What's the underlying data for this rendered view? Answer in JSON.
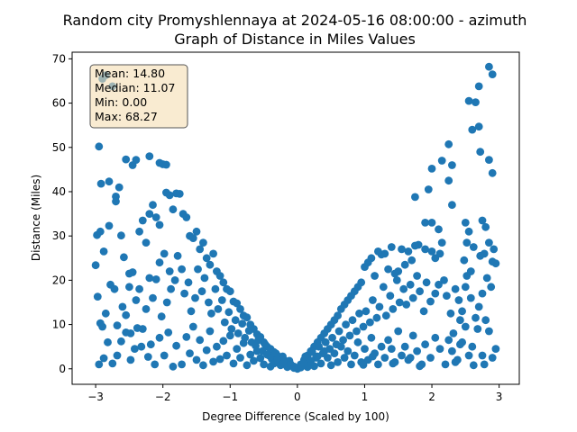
{
  "chart_data": {
    "type": "scatter",
    "title_line1": "Random city Promyshlennaya at 2024-05-16 08:00:00  - azimuth",
    "title_line2": "Graph of Distance in Miles Values",
    "xlabel": "Degree Difference (Scaled by 100)",
    "ylabel": "Distance (Miles)",
    "xlim": [
      -3.35,
      3.3
    ],
    "ylim": [
      -3.5,
      71.5
    ],
    "xticks": [
      -3,
      -2,
      -1,
      0,
      1,
      2,
      3
    ],
    "yticks": [
      0,
      10,
      20,
      30,
      40,
      50,
      60,
      70
    ],
    "grid": false,
    "marker_color": "#1f77b4",
    "stats_box": {
      "mean": "Mean: 14.80",
      "median": "Median: 11.07",
      "min": "Min: 0.00",
      "max": "Max: 68.27",
      "facecolor": "#f5deb3",
      "placement": "top-left"
    },
    "points": [
      [
        -2.95,
        50.2
      ],
      [
        -2.9,
        65.5
      ],
      [
        -2.85,
        66.3
      ],
      [
        -2.92,
        41.8
      ],
      [
        -2.8,
        42.3
      ],
      [
        -2.75,
        63.8
      ],
      [
        -2.7,
        38.9
      ],
      [
        -2.65,
        41.0
      ],
      [
        -2.55,
        47.3
      ],
      [
        -2.45,
        46.0
      ],
      [
        -2.4,
        47.2
      ],
      [
        -2.2,
        48.0
      ],
      [
        -2.05,
        46.5
      ],
      [
        -2.0,
        46.2
      ],
      [
        -1.95,
        46.1
      ],
      [
        -2.98,
        30.2
      ],
      [
        -2.93,
        31.0
      ],
      [
        -2.88,
        26.5
      ],
      [
        -2.8,
        32.3
      ],
      [
        -2.7,
        37.8
      ],
      [
        -2.62,
        30.1
      ],
      [
        -2.58,
        25.2
      ],
      [
        -2.5,
        21.5
      ],
      [
        -2.45,
        21.8
      ],
      [
        -2.35,
        31.0
      ],
      [
        -2.3,
        33.5
      ],
      [
        -2.25,
        28.5
      ],
      [
        -2.2,
        35.0
      ],
      [
        -2.15,
        37.0
      ],
      [
        -2.1,
        34.2
      ],
      [
        -2.05,
        32.5
      ],
      [
        -1.95,
        39.8
      ],
      [
        -1.9,
        39.2
      ],
      [
        -1.85,
        36.0
      ],
      [
        -1.8,
        39.6
      ],
      [
        -1.75,
        39.5
      ],
      [
        -1.7,
        35.0
      ],
      [
        -1.65,
        34.2
      ],
      [
        -1.6,
        30.0
      ],
      [
        -1.55,
        29.5
      ],
      [
        -1.5,
        31.0
      ],
      [
        -1.45,
        27.0
      ],
      [
        -1.4,
        28.5
      ],
      [
        -1.35,
        25.0
      ],
      [
        -1.3,
        23.5
      ],
      [
        -1.25,
        26.0
      ],
      [
        -1.2,
        22.0
      ],
      [
        -1.15,
        21.0
      ],
      [
        -1.1,
        19.5
      ],
      [
        -1.05,
        18.0
      ],
      [
        -1.0,
        17.5
      ],
      [
        -0.95,
        15.2
      ],
      [
        -0.9,
        14.8
      ],
      [
        -0.85,
        13.5
      ],
      [
        -0.8,
        12.0
      ],
      [
        -0.75,
        11.6
      ],
      [
        -0.7,
        10.0
      ],
      [
        -0.65,
        9.0
      ],
      [
        -0.6,
        7.8
      ],
      [
        -0.55,
        7.2
      ],
      [
        -0.5,
        6.0
      ],
      [
        -0.45,
        5.0
      ],
      [
        -0.4,
        4.5
      ],
      [
        -0.35,
        3.8
      ],
      [
        -0.3,
        3.0
      ],
      [
        -0.25,
        2.6
      ],
      [
        -0.2,
        2.0
      ],
      [
        -0.15,
        1.6
      ],
      [
        -0.1,
        1.0
      ],
      [
        -0.05,
        0.5
      ],
      [
        0.0,
        0.0
      ],
      [
        -3.0,
        23.4
      ],
      [
        -2.97,
        16.3
      ],
      [
        -2.93,
        10.3
      ],
      [
        -2.9,
        9.5
      ],
      [
        -2.85,
        12.5
      ],
      [
        -2.78,
        19.0
      ],
      [
        -2.72,
        18.0
      ],
      [
        -2.68,
        9.8
      ],
      [
        -2.6,
        14.0
      ],
      [
        -2.55,
        12.1
      ],
      [
        -2.5,
        18.5
      ],
      [
        -2.48,
        8.0
      ],
      [
        -2.42,
        4.5
      ],
      [
        -2.4,
        15.5
      ],
      [
        -2.35,
        18.0
      ],
      [
        -2.3,
        9.0
      ],
      [
        -2.25,
        13.5
      ],
      [
        -2.2,
        20.5
      ],
      [
        -2.15,
        16.0
      ],
      [
        -2.1,
        20.2
      ],
      [
        -2.05,
        24.0
      ],
      [
        -2.02,
        11.8
      ],
      [
        -1.98,
        26.0
      ],
      [
        -1.94,
        15.0
      ],
      [
        -1.9,
        22.0
      ],
      [
        -1.88,
        18.0
      ],
      [
        -1.82,
        20.0
      ],
      [
        -1.78,
        25.5
      ],
      [
        -1.72,
        22.5
      ],
      [
        -1.68,
        17.0
      ],
      [
        -1.62,
        19.5
      ],
      [
        -1.58,
        13.0
      ],
      [
        -1.52,
        16.0
      ],
      [
        -1.48,
        22.5
      ],
      [
        -1.42,
        17.5
      ],
      [
        -1.38,
        20.5
      ],
      [
        -1.32,
        15.0
      ],
      [
        -1.28,
        12.5
      ],
      [
        -1.22,
        18.0
      ],
      [
        -1.18,
        13.5
      ],
      [
        -1.12,
        15.5
      ],
      [
        -1.08,
        10.5
      ],
      [
        -1.02,
        12.8
      ],
      [
        -0.98,
        9.0
      ],
      [
        -0.92,
        11.0
      ],
      [
        -0.88,
        8.0
      ],
      [
        -0.82,
        10.2
      ],
      [
        -0.78,
        7.0
      ],
      [
        -0.72,
        8.6
      ],
      [
        -0.68,
        6.0
      ],
      [
        -0.62,
        5.2
      ],
      [
        -0.58,
        6.5
      ],
      [
        -0.52,
        4.0
      ],
      [
        -0.48,
        5.5
      ],
      [
        -0.42,
        3.0
      ],
      [
        -0.38,
        2.2
      ],
      [
        -0.32,
        3.5
      ],
      [
        -0.28,
        1.5
      ],
      [
        -0.22,
        2.8
      ],
      [
        -0.18,
        1.0
      ],
      [
        -0.12,
        1.8
      ],
      [
        -2.95,
        1.0
      ],
      [
        -2.88,
        2.4
      ],
      [
        -2.82,
        6.0
      ],
      [
        -2.75,
        1.2
      ],
      [
        -2.68,
        3.0
      ],
      [
        -2.62,
        6.2
      ],
      [
        -2.55,
        8.2
      ],
      [
        -2.48,
        2.0
      ],
      [
        -2.38,
        9.2
      ],
      [
        -2.32,
        5.0
      ],
      [
        -2.22,
        2.7
      ],
      [
        -2.18,
        5.5
      ],
      [
        -2.12,
        1.0
      ],
      [
        -2.05,
        7.0
      ],
      [
        -1.98,
        3.0
      ],
      [
        -1.92,
        8.2
      ],
      [
        -1.85,
        0.5
      ],
      [
        -1.8,
        5.2
      ],
      [
        -1.72,
        1.0
      ],
      [
        -1.65,
        7.2
      ],
      [
        -1.6,
        3.5
      ],
      [
        -1.55,
        9.5
      ],
      [
        -1.5,
        2.0
      ],
      [
        -1.45,
        6.5
      ],
      [
        -1.4,
        0.8
      ],
      [
        -1.35,
        4.2
      ],
      [
        -1.3,
        8.5
      ],
      [
        -1.25,
        1.6
      ],
      [
        -1.2,
        5.0
      ],
      [
        -1.15,
        2.2
      ],
      [
        -1.1,
        6.3
      ],
      [
        -1.05,
        3.0
      ],
      [
        -1.0,
        7.5
      ],
      [
        -0.95,
        1.2
      ],
      [
        -0.9,
        4.5
      ],
      [
        -0.85,
        2.5
      ],
      [
        -0.8,
        5.8
      ],
      [
        -0.75,
        0.8
      ],
      [
        -0.7,
        3.2
      ],
      [
        -0.65,
        1.8
      ],
      [
        -0.6,
        4.0
      ],
      [
        -0.55,
        2.4
      ],
      [
        -0.5,
        1.0
      ],
      [
        -0.45,
        3.2
      ],
      [
        -0.4,
        0.5
      ],
      [
        -0.35,
        1.2
      ],
      [
        -0.3,
        2.0
      ],
      [
        -0.25,
        0.8
      ],
      [
        -0.2,
        1.4
      ],
      [
        -0.15,
        0.4
      ],
      [
        -0.1,
        0.9
      ],
      [
        -0.05,
        0.2
      ],
      [
        2.85,
        68.2
      ],
      [
        2.9,
        66.5
      ],
      [
        2.7,
        63.8
      ],
      [
        2.55,
        60.5
      ],
      [
        2.65,
        60.2
      ],
      [
        2.7,
        54.7
      ],
      [
        2.6,
        54.0
      ],
      [
        2.72,
        49.0
      ],
      [
        2.85,
        47.2
      ],
      [
        2.25,
        50.7
      ],
      [
        2.15,
        47.0
      ],
      [
        2.9,
        44.2
      ],
      [
        2.3,
        46.0
      ],
      [
        2.0,
        45.2
      ],
      [
        1.95,
        40.5
      ],
      [
        1.75,
        38.8
      ],
      [
        2.25,
        42.5
      ],
      [
        2.3,
        37.0
      ],
      [
        1.9,
        33.0
      ],
      [
        2.0,
        33.0
      ],
      [
        2.75,
        33.5
      ],
      [
        2.5,
        33.0
      ],
      [
        2.8,
        32.0
      ],
      [
        2.55,
        31.0
      ],
      [
        2.52,
        28.5
      ],
      [
        2.62,
        27.5
      ],
      [
        2.85,
        28.5
      ],
      [
        2.92,
        27.0
      ],
      [
        2.78,
        26.0
      ],
      [
        2.9,
        24.2
      ],
      [
        2.1,
        31.5
      ],
      [
        2.15,
        28.5
      ],
      [
        1.8,
        28.0
      ],
      [
        1.9,
        27.0
      ],
      [
        2.0,
        26.5
      ],
      [
        1.75,
        27.8
      ],
      [
        1.65,
        26.5
      ],
      [
        1.55,
        27.0
      ],
      [
        1.4,
        27.5
      ],
      [
        1.3,
        26.0
      ],
      [
        1.25,
        25.8
      ],
      [
        1.2,
        26.5
      ],
      [
        1.1,
        25.0
      ],
      [
        1.05,
        24.0
      ],
      [
        1.0,
        23.0
      ],
      [
        2.12,
        26.0
      ],
      [
        2.05,
        25.0
      ],
      [
        1.7,
        24.5
      ],
      [
        1.6,
        23.5
      ],
      [
        1.5,
        22.0
      ],
      [
        1.45,
        21.5
      ],
      [
        1.35,
        22.5
      ],
      [
        1.15,
        21.0
      ],
      [
        0.95,
        19.5
      ],
      [
        0.9,
        18.5
      ],
      [
        0.85,
        17.5
      ],
      [
        0.8,
        16.5
      ],
      [
        0.75,
        15.5
      ],
      [
        0.7,
        14.5
      ],
      [
        0.65,
        13.5
      ],
      [
        0.6,
        12.0
      ],
      [
        0.55,
        11.0
      ],
      [
        0.5,
        10.0
      ],
      [
        0.45,
        9.0
      ],
      [
        0.4,
        8.0
      ],
      [
        0.35,
        7.0
      ],
      [
        0.3,
        6.0
      ],
      [
        0.25,
        5.0
      ],
      [
        0.2,
        4.0
      ],
      [
        0.15,
        3.0
      ],
      [
        0.1,
        2.0
      ],
      [
        0.05,
        1.0
      ],
      [
        2.95,
        23.8
      ],
      [
        2.88,
        18.5
      ],
      [
        2.82,
        20.5
      ],
      [
        2.75,
        17.0
      ],
      [
        2.7,
        14.0
      ],
      [
        2.65,
        11.5
      ],
      [
        2.58,
        16.0
      ],
      [
        2.5,
        18.5
      ],
      [
        2.45,
        13.0
      ],
      [
        2.4,
        15.5
      ],
      [
        2.35,
        18.0
      ],
      [
        2.28,
        12.5
      ],
      [
        2.22,
        16.5
      ],
      [
        2.18,
        20.0
      ],
      [
        2.1,
        19.0
      ],
      [
        2.05,
        17.0
      ],
      [
        1.98,
        15.2
      ],
      [
        1.92,
        19.5
      ],
      [
        1.88,
        13.0
      ],
      [
        1.82,
        17.5
      ],
      [
        1.78,
        21.0
      ],
      [
        1.72,
        16.0
      ],
      [
        1.68,
        19.0
      ],
      [
        1.62,
        14.5
      ],
      [
        1.58,
        18.0
      ],
      [
        1.52,
        15.0
      ],
      [
        1.48,
        20.0
      ],
      [
        1.42,
        13.5
      ],
      [
        1.38,
        16.5
      ],
      [
        1.32,
        12.0
      ],
      [
        1.28,
        18.5
      ],
      [
        1.22,
        14.0
      ],
      [
        1.18,
        11.5
      ],
      [
        1.12,
        15.5
      ],
      [
        1.08,
        10.5
      ],
      [
        1.02,
        13.0
      ],
      [
        0.98,
        9.5
      ],
      [
        0.92,
        12.5
      ],
      [
        0.88,
        8.5
      ],
      [
        0.82,
        11.0
      ],
      [
        0.78,
        7.5
      ],
      [
        0.72,
        10.0
      ],
      [
        0.68,
        6.5
      ],
      [
        0.62,
        8.5
      ],
      [
        0.58,
        5.5
      ],
      [
        0.52,
        7.0
      ],
      [
        0.48,
        4.5
      ],
      [
        0.42,
        6.0
      ],
      [
        0.38,
        3.5
      ],
      [
        0.32,
        5.0
      ],
      [
        0.28,
        2.5
      ],
      [
        0.22,
        3.8
      ],
      [
        0.18,
        1.8
      ],
      [
        0.12,
        2.8
      ],
      [
        0.08,
        0.8
      ],
      [
        2.95,
        4.5
      ],
      [
        2.9,
        2.5
      ],
      [
        2.85,
        8.5
      ],
      [
        2.8,
        11.0
      ],
      [
        2.75,
        3.0
      ],
      [
        2.68,
        9.0
      ],
      [
        2.6,
        5.0
      ],
      [
        2.55,
        3.0
      ],
      [
        2.5,
        9.5
      ],
      [
        2.42,
        5.5
      ],
      [
        2.38,
        2.0
      ],
      [
        2.3,
        4.0
      ],
      [
        2.25,
        6.5
      ],
      [
        2.2,
        1.0
      ],
      [
        2.12,
        4.5
      ],
      [
        2.05,
        7.0
      ],
      [
        1.98,
        2.5
      ],
      [
        1.9,
        5.5
      ],
      [
        1.85,
        1.0
      ],
      [
        1.78,
        4.0
      ],
      [
        1.72,
        7.5
      ],
      [
        1.65,
        2.0
      ],
      [
        1.6,
        5.0
      ],
      [
        1.55,
        3.0
      ],
      [
        1.5,
        8.5
      ],
      [
        1.45,
        1.5
      ],
      [
        1.4,
        4.5
      ],
      [
        1.35,
        6.5
      ],
      [
        1.3,
        2.5
      ],
      [
        1.25,
        5.0
      ],
      [
        1.2,
        1.0
      ],
      [
        1.15,
        3.5
      ],
      [
        1.1,
        7.0
      ],
      [
        1.05,
        2.0
      ],
      [
        1.0,
        4.5
      ],
      [
        0.95,
        1.5
      ],
      [
        0.9,
        6.0
      ],
      [
        0.85,
        3.0
      ],
      [
        0.8,
        1.0
      ],
      [
        0.75,
        4.0
      ],
      [
        0.7,
        2.5
      ],
      [
        0.65,
        5.0
      ],
      [
        0.6,
        1.5
      ],
      [
        0.55,
        3.5
      ],
      [
        0.5,
        0.8
      ],
      [
        0.45,
        2.5
      ],
      [
        0.4,
        4.0
      ],
      [
        0.35,
        1.2
      ],
      [
        0.3,
        2.8
      ],
      [
        0.25,
        0.6
      ],
      [
        0.2,
        1.8
      ],
      [
        0.15,
        0.4
      ],
      [
        0.1,
        1.2
      ],
      [
        0.05,
        0.3
      ],
      [
        2.78,
        1.0
      ],
      [
        2.62,
        0.8
      ],
      [
        2.45,
        6.0
      ],
      [
        2.35,
        1.5
      ],
      [
        1.82,
        0.6
      ],
      [
        1.68,
        2.5
      ],
      [
        1.42,
        1.2
      ],
      [
        1.12,
        2.8
      ],
      [
        0.98,
        0.9
      ],
      [
        2.52,
        21.0
      ],
      [
        2.48,
        24.5
      ],
      [
        2.72,
        25.5
      ],
      [
        2.58,
        22.0
      ],
      [
        2.42,
        11.0
      ],
      [
        2.32,
        8.0
      ]
    ]
  }
}
